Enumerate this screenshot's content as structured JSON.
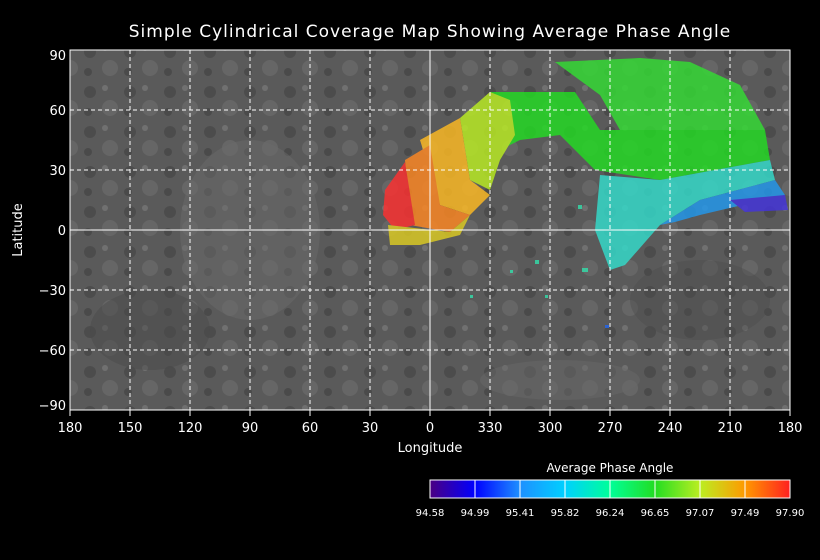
{
  "title": "Simple Cylindrical Coverage Map Showing Average Phase Angle",
  "axes": {
    "xlabel": "Longitude",
    "ylabel": "Latitude",
    "x_ticks": [
      "180",
      "150",
      "120",
      "90",
      "60",
      "30",
      "0",
      "330",
      "300",
      "270",
      "240",
      "210",
      "180"
    ],
    "y_ticks": [
      "90",
      "60",
      "30",
      "0",
      "−30",
      "−60",
      "−90"
    ]
  },
  "colorbar": {
    "title": "Average Phase Angle",
    "ticks": [
      "94.58",
      "94.99",
      "95.41",
      "95.82",
      "96.24",
      "96.65",
      "97.07",
      "97.49",
      "97.90"
    ],
    "colors": [
      "#4b0082",
      "#0000ff",
      "#1e90ff",
      "#00d0ff",
      "#00ff99",
      "#22dd22",
      "#bbee22",
      "#ff9900",
      "#ff2020"
    ]
  },
  "colors": {
    "background": "#000000",
    "basemap": "#555555",
    "grid": "#ffffff"
  }
}
